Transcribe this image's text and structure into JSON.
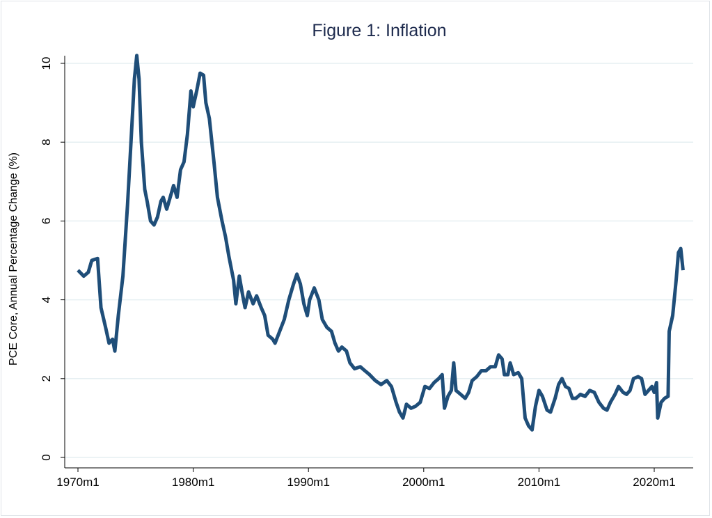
{
  "chart_data": {
    "type": "line",
    "title": "Figure 1: Inflation",
    "xlabel": "",
    "ylabel": "PCE Core, Annual Percentage Change (%)",
    "xlim": [
      1970,
      2022.5
    ],
    "ylim": [
      0,
      10
    ],
    "grid": true,
    "x_ticks": [
      1970,
      1980,
      1990,
      2000,
      2010,
      2020
    ],
    "x_tick_labels": [
      "1970m1",
      "1980m1",
      "1990m1",
      "2000m1",
      "2010m1",
      "2020m1"
    ],
    "y_ticks": [
      0,
      2,
      4,
      6,
      8,
      10
    ],
    "y_tick_labels": [
      "0",
      "2",
      "4",
      "6",
      "8",
      "10"
    ],
    "color": "#1f4e79",
    "series": [
      {
        "name": "PCE Core",
        "points": [
          [
            1970.0,
            4.75
          ],
          [
            1970.5,
            4.6
          ],
          [
            1970.9,
            4.7
          ],
          [
            1971.2,
            5.0
          ],
          [
            1971.7,
            5.05
          ],
          [
            1972.0,
            3.8
          ],
          [
            1972.4,
            3.3
          ],
          [
            1972.7,
            2.9
          ],
          [
            1973.0,
            3.0
          ],
          [
            1973.2,
            2.7
          ],
          [
            1973.5,
            3.6
          ],
          [
            1973.9,
            4.6
          ],
          [
            1974.3,
            6.4
          ],
          [
            1974.6,
            8.0
          ],
          [
            1974.9,
            9.6
          ],
          [
            1975.1,
            10.2
          ],
          [
            1975.3,
            9.6
          ],
          [
            1975.5,
            8.0
          ],
          [
            1975.8,
            6.8
          ],
          [
            1976.0,
            6.5
          ],
          [
            1976.3,
            6.0
          ],
          [
            1976.6,
            5.9
          ],
          [
            1976.9,
            6.1
          ],
          [
            1977.2,
            6.5
          ],
          [
            1977.4,
            6.6
          ],
          [
            1977.7,
            6.3
          ],
          [
            1978.0,
            6.6
          ],
          [
            1978.3,
            6.9
          ],
          [
            1978.6,
            6.6
          ],
          [
            1978.9,
            7.3
          ],
          [
            1979.2,
            7.5
          ],
          [
            1979.5,
            8.2
          ],
          [
            1979.8,
            9.3
          ],
          [
            1980.0,
            8.9
          ],
          [
            1980.3,
            9.3
          ],
          [
            1980.6,
            9.75
          ],
          [
            1980.9,
            9.7
          ],
          [
            1981.1,
            9.0
          ],
          [
            1981.4,
            8.6
          ],
          [
            1981.8,
            7.5
          ],
          [
            1982.1,
            6.6
          ],
          [
            1982.5,
            6.0
          ],
          [
            1982.8,
            5.6
          ],
          [
            1983.1,
            5.1
          ],
          [
            1983.5,
            4.5
          ],
          [
            1983.7,
            3.9
          ],
          [
            1984.0,
            4.6
          ],
          [
            1984.3,
            4.1
          ],
          [
            1984.5,
            3.8
          ],
          [
            1984.8,
            4.2
          ],
          [
            1985.2,
            3.9
          ],
          [
            1985.5,
            4.1
          ],
          [
            1985.9,
            3.8
          ],
          [
            1986.2,
            3.6
          ],
          [
            1986.5,
            3.1
          ],
          [
            1986.9,
            3.0
          ],
          [
            1987.1,
            2.9
          ],
          [
            1987.5,
            3.2
          ],
          [
            1987.9,
            3.5
          ],
          [
            1988.3,
            4.0
          ],
          [
            1988.7,
            4.4
          ],
          [
            1989.0,
            4.65
          ],
          [
            1989.3,
            4.4
          ],
          [
            1989.6,
            3.9
          ],
          [
            1989.9,
            3.6
          ],
          [
            1990.1,
            4.0
          ],
          [
            1990.5,
            4.3
          ],
          [
            1990.9,
            4.0
          ],
          [
            1991.2,
            3.5
          ],
          [
            1991.6,
            3.3
          ],
          [
            1992.0,
            3.2
          ],
          [
            1992.3,
            2.9
          ],
          [
            1992.6,
            2.7
          ],
          [
            1992.9,
            2.8
          ],
          [
            1993.3,
            2.7
          ],
          [
            1993.6,
            2.4
          ],
          [
            1994.0,
            2.25
          ],
          [
            1994.5,
            2.3
          ],
          [
            1994.9,
            2.2
          ],
          [
            1995.3,
            2.1
          ],
          [
            1995.8,
            1.95
          ],
          [
            1996.3,
            1.85
          ],
          [
            1996.8,
            1.95
          ],
          [
            1997.2,
            1.8
          ],
          [
            1997.6,
            1.4
          ],
          [
            1997.9,
            1.15
          ],
          [
            1998.2,
            1.0
          ],
          [
            1998.5,
            1.35
          ],
          [
            1998.9,
            1.25
          ],
          [
            1999.3,
            1.3
          ],
          [
            1999.7,
            1.4
          ],
          [
            2000.1,
            1.8
          ],
          [
            2000.5,
            1.75
          ],
          [
            2000.9,
            1.9
          ],
          [
            2001.3,
            2.0
          ],
          [
            2001.6,
            2.1
          ],
          [
            2001.8,
            1.25
          ],
          [
            2002.1,
            1.55
          ],
          [
            2002.4,
            1.7
          ],
          [
            2002.6,
            2.4
          ],
          [
            2002.8,
            1.7
          ],
          [
            2003.2,
            1.6
          ],
          [
            2003.6,
            1.5
          ],
          [
            2003.9,
            1.65
          ],
          [
            2004.2,
            1.95
          ],
          [
            2004.6,
            2.05
          ],
          [
            2005.0,
            2.2
          ],
          [
            2005.4,
            2.2
          ],
          [
            2005.8,
            2.3
          ],
          [
            2006.2,
            2.3
          ],
          [
            2006.5,
            2.6
          ],
          [
            2006.8,
            2.5
          ],
          [
            2007.0,
            2.1
          ],
          [
            2007.3,
            2.1
          ],
          [
            2007.5,
            2.4
          ],
          [
            2007.8,
            2.1
          ],
          [
            2008.2,
            2.15
          ],
          [
            2008.5,
            2.0
          ],
          [
            2008.8,
            1.0
          ],
          [
            2009.1,
            0.8
          ],
          [
            2009.4,
            0.7
          ],
          [
            2009.7,
            1.3
          ],
          [
            2010.0,
            1.7
          ],
          [
            2010.3,
            1.55
          ],
          [
            2010.7,
            1.2
          ],
          [
            2011.0,
            1.15
          ],
          [
            2011.4,
            1.5
          ],
          [
            2011.7,
            1.85
          ],
          [
            2012.0,
            2.0
          ],
          [
            2012.3,
            1.8
          ],
          [
            2012.6,
            1.75
          ],
          [
            2012.9,
            1.5
          ],
          [
            2013.2,
            1.5
          ],
          [
            2013.6,
            1.6
          ],
          [
            2014.0,
            1.55
          ],
          [
            2014.4,
            1.7
          ],
          [
            2014.8,
            1.65
          ],
          [
            2015.2,
            1.4
          ],
          [
            2015.6,
            1.25
          ],
          [
            2015.9,
            1.2
          ],
          [
            2016.2,
            1.4
          ],
          [
            2016.6,
            1.6
          ],
          [
            2016.9,
            1.8
          ],
          [
            2017.3,
            1.65
          ],
          [
            2017.6,
            1.6
          ],
          [
            2017.9,
            1.7
          ],
          [
            2018.2,
            2.0
          ],
          [
            2018.6,
            2.05
          ],
          [
            2018.9,
            2.0
          ],
          [
            2019.2,
            1.6
          ],
          [
            2019.5,
            1.7
          ],
          [
            2019.8,
            1.8
          ],
          [
            2020.0,
            1.65
          ],
          [
            2020.2,
            1.9
          ],
          [
            2020.3,
            1.0
          ],
          [
            2020.6,
            1.4
          ],
          [
            2020.9,
            1.5
          ],
          [
            2021.2,
            1.55
          ],
          [
            2021.3,
            3.2
          ],
          [
            2021.6,
            3.6
          ],
          [
            2021.9,
            4.5
          ],
          [
            2022.1,
            5.2
          ],
          [
            2022.3,
            5.3
          ],
          [
            2022.5,
            4.75
          ]
        ]
      }
    ]
  }
}
